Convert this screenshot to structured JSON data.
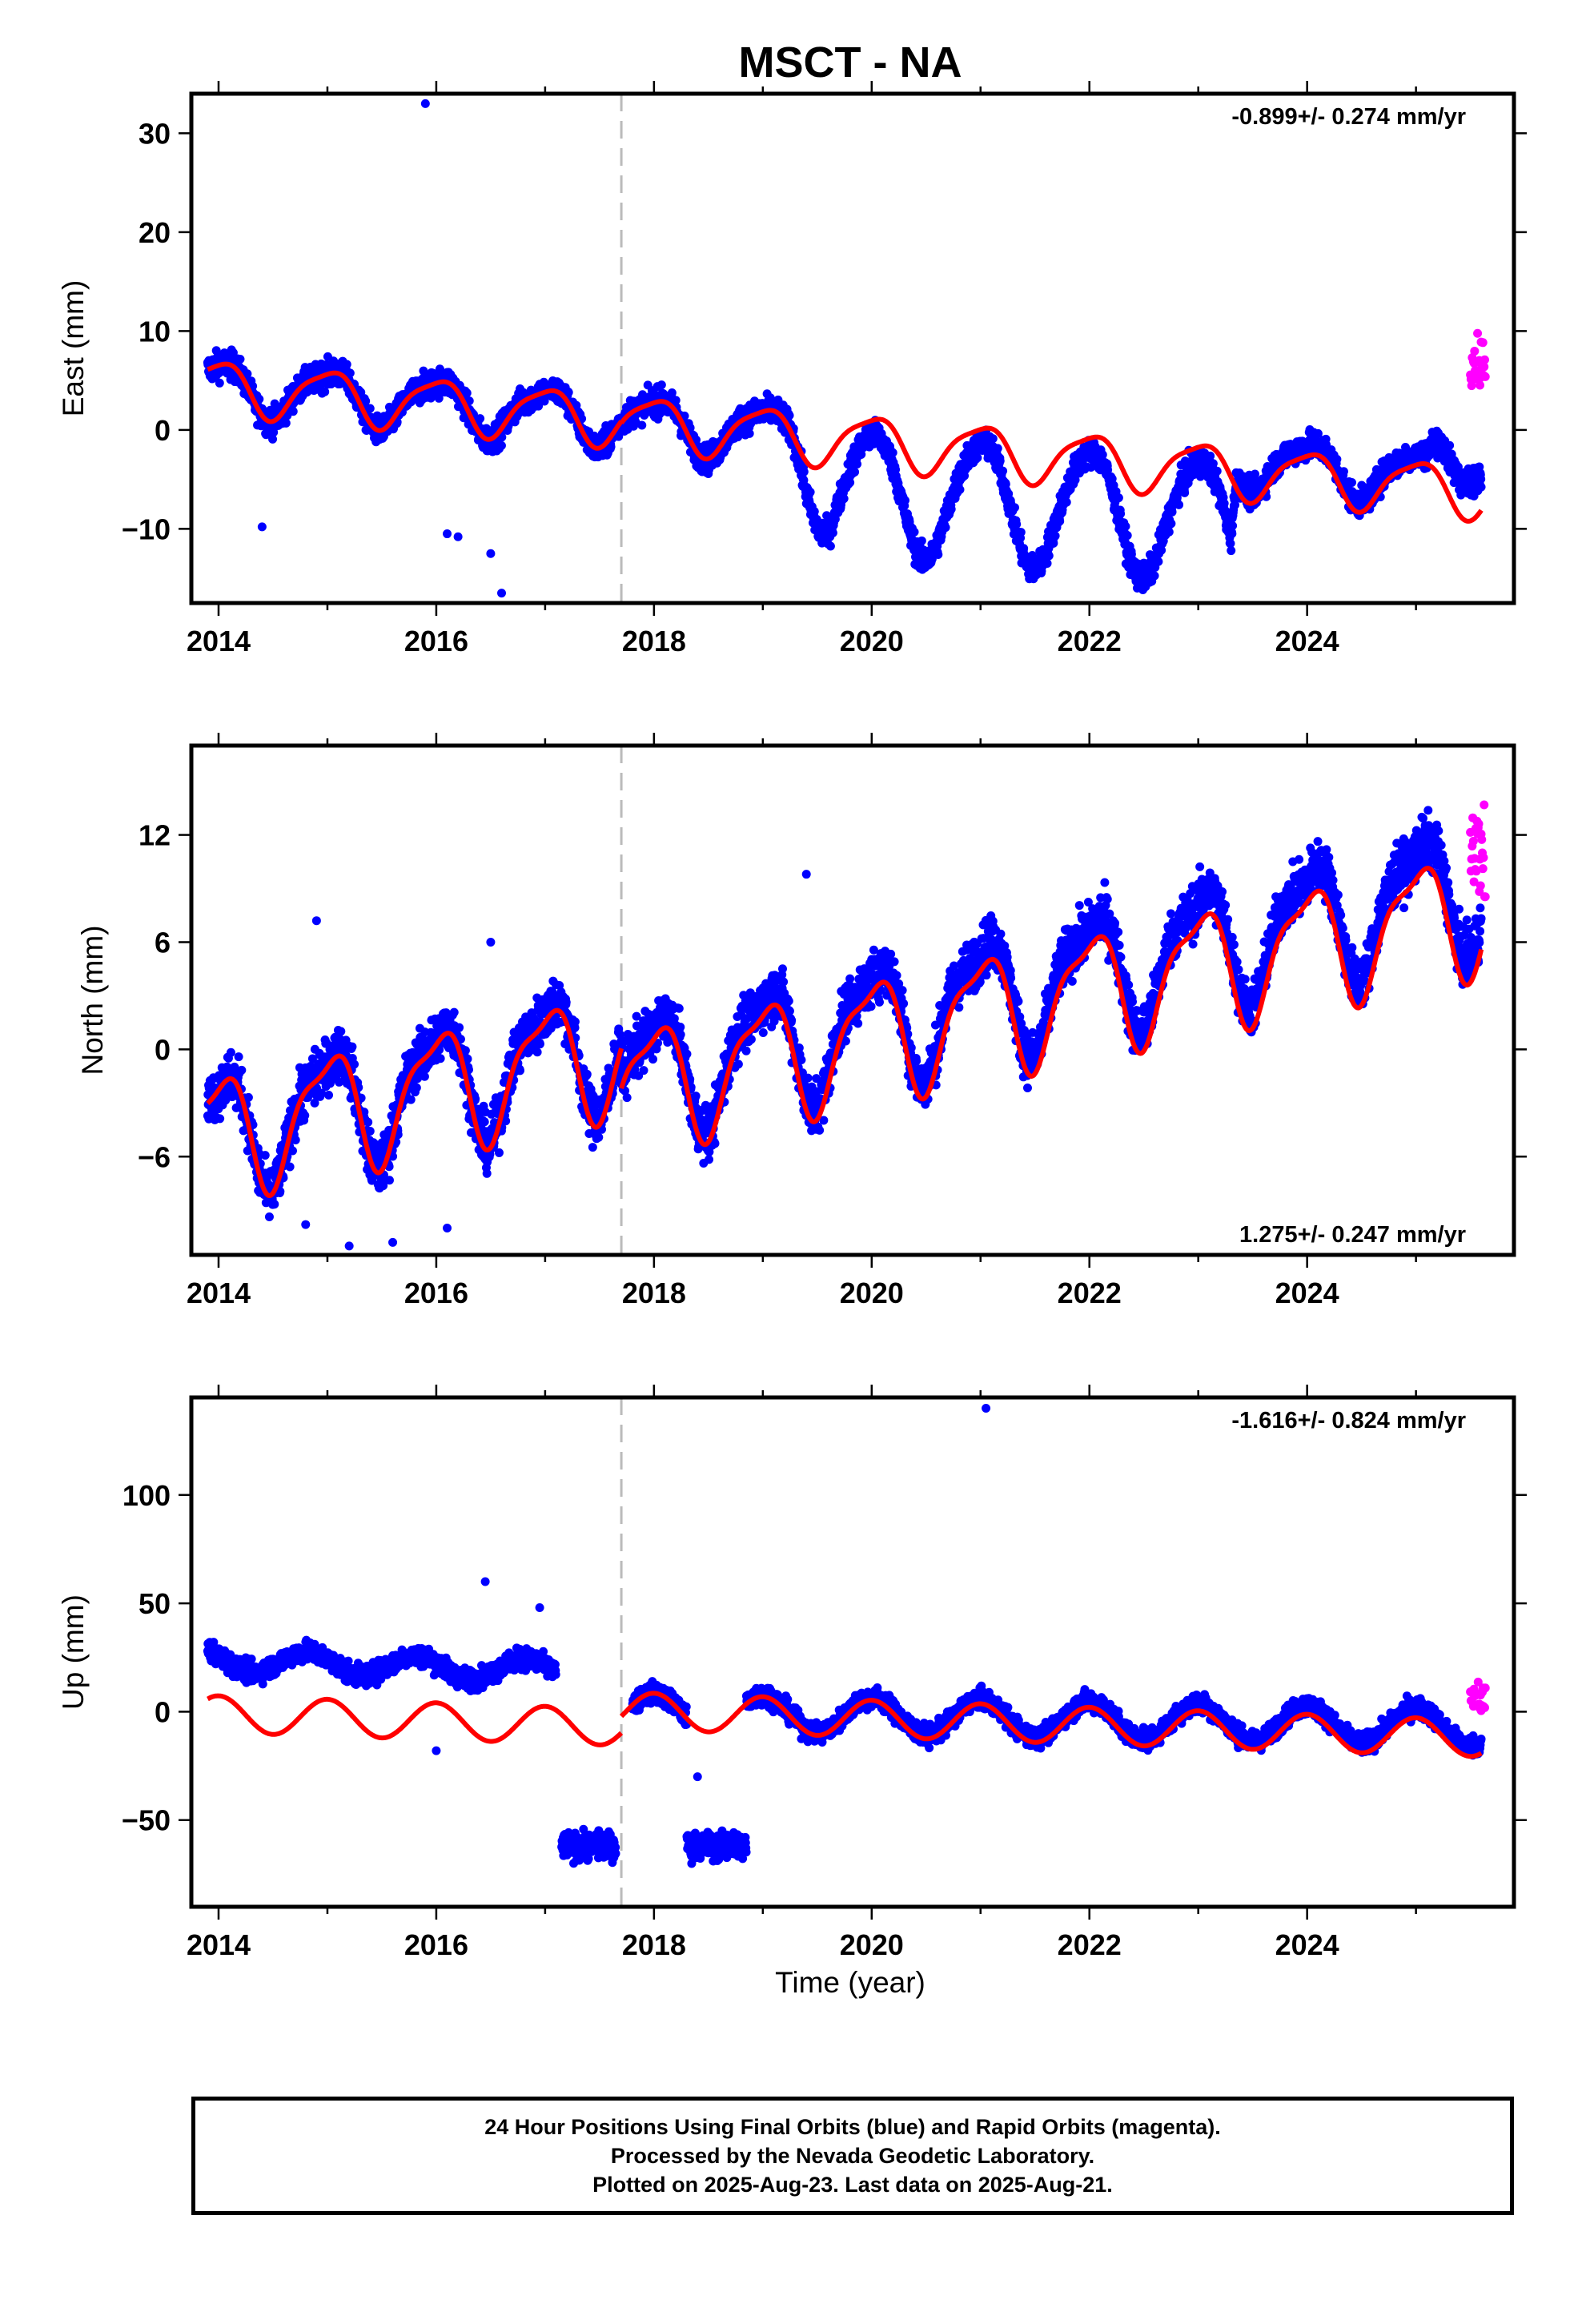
{
  "title": "MSCT - NA",
  "xlabel": "Time (year)",
  "caption": {
    "line1": "24 Hour Positions Using Final Orbits (blue) and Rapid Orbits (magenta).",
    "line2": "Processed by the Nevada Geodetic Laboratory.",
    "line3": "Plotted on 2025-Aug-23. Last data on 2025-Aug-21."
  },
  "colors": {
    "final_orbits": "#0000ff",
    "rapid_orbits": "#ff00ff",
    "model": "#ff0000",
    "event_line": "#bbbbbb"
  },
  "chart_data": [
    {
      "type": "scatter",
      "panel": "east",
      "ylabel": "East (mm)",
      "annotation": "-0.899+/- 0.274 mm/yr",
      "xlim": [
        2013.75,
        2025.9
      ],
      "ylim": [
        -17.5,
        34
      ],
      "xticks": [
        2014,
        2016,
        2018,
        2020,
        2022,
        2024
      ],
      "yticks": [
        -10,
        0,
        10,
        20,
        30
      ],
      "event_line_x": 2017.7,
      "model": {
        "trend_mm_per_yr": -0.899,
        "annual_amp": 2.6,
        "semiannual_amp": 0.6,
        "segments": [
          {
            "start": 2013.9,
            "end": 2017.7,
            "offset_at_start": 4.5
          },
          {
            "start": 2017.7,
            "end": 2025.6,
            "offset_at_start": 0.9
          }
        ]
      },
      "final_orbits": {
        "start": 2013.9,
        "end": 2025.6,
        "gaps": [
          [
            2017.0,
            2017.05
          ]
        ],
        "noise_mm": 1.8,
        "drift_anchors": [
          [
            2013.9,
            0
          ],
          [
            2019.3,
            0
          ],
          [
            2019.6,
            -5
          ],
          [
            2023.3,
            -5
          ],
          [
            2023.35,
            1
          ],
          [
            2025.1,
            1
          ],
          [
            2025.2,
            3.5
          ],
          [
            2025.6,
            4
          ]
        ],
        "extra_annual_anchors": [
          [
            2013.9,
            0
          ],
          [
            2019.2,
            0
          ],
          [
            2019.6,
            3.5
          ],
          [
            2023.3,
            3.5
          ],
          [
            2023.35,
            0
          ],
          [
            2025.6,
            0
          ]
        ],
        "outliers": [
          [
            2015.9,
            33
          ],
          [
            2016.6,
            -16.5
          ],
          [
            2016.5,
            -12.5
          ],
          [
            2016.1,
            -10.5
          ],
          [
            2016.2,
            -10.8
          ],
          [
            2014.4,
            -9.8
          ]
        ]
      },
      "rapid_orbits": {
        "start": 2025.5,
        "end": 2025.64,
        "center_mm": 7,
        "spread_mm": 3
      }
    },
    {
      "type": "scatter",
      "panel": "north",
      "ylabel": "North (mm)",
      "annotation": "1.275+/- 0.247 mm/yr",
      "xlim": [
        2013.75,
        2025.9
      ],
      "ylim": [
        -11.5,
        17
      ],
      "xticks": [
        2014,
        2016,
        2018,
        2020,
        2022,
        2024
      ],
      "yticks": [
        -6,
        0,
        6,
        12
      ],
      "event_line_x": 2017.7,
      "model": {
        "trend_mm_per_yr": 1.275,
        "annual_amp": 3.2,
        "semiannual_amp": 1.0,
        "segments": [
          {
            "start": 2013.9,
            "end": 2017.7,
            "offset_at_start": -4.8
          },
          {
            "start": 2017.7,
            "end": 2025.6,
            "offset_at_start": -2.2
          }
        ]
      },
      "final_orbits": {
        "start": 2013.9,
        "end": 2025.6,
        "gaps": [],
        "noise_mm": 1.9,
        "drift_anchors": [
          [
            2013.9,
            0
          ],
          [
            2025.6,
            1.5
          ]
        ],
        "extra_annual_anchors": [
          [
            2013.9,
            0
          ],
          [
            2025.6,
            0
          ]
        ],
        "outliers": [
          [
            2015.2,
            -11
          ],
          [
            2015.6,
            -10.8
          ],
          [
            2014.8,
            -9.8
          ],
          [
            2014.9,
            7.2
          ],
          [
            2016.5,
            6
          ],
          [
            2019.4,
            9.8
          ],
          [
            2016.1,
            -10
          ]
        ]
      },
      "rapid_orbits": {
        "start": 2025.5,
        "end": 2025.64,
        "center_mm": 11,
        "spread_mm": 3.5
      }
    },
    {
      "type": "scatter",
      "panel": "up",
      "ylabel": "Up (mm)",
      "annotation": "-1.616+/- 0.824 mm/yr",
      "xlim": [
        2013.75,
        2025.9
      ],
      "ylim": [
        -90,
        145
      ],
      "xticks": [
        2014,
        2016,
        2018,
        2020,
        2022,
        2024
      ],
      "yticks": [
        -50,
        0,
        50,
        100
      ],
      "event_line_x": 2017.7,
      "model": {
        "trend_mm_per_yr": -1.616,
        "annual_amp": 8.5,
        "semiannual_amp": 0.0,
        "segments": [
          {
            "start": 2013.9,
            "end": 2017.7,
            "offset_at_start": -1.0
          },
          {
            "start": 2017.7,
            "end": 2025.6,
            "offset_at_start": 0.5
          }
        ]
      },
      "final_orbits": {
        "start": 2013.9,
        "end": 2025.6,
        "gaps": [
          [
            2017.65,
            2017.8
          ],
          [
            2018.0,
            2018.02
          ]
        ],
        "noise_mm": 6,
        "drift_anchors": [
          [
            2013.9,
            15
          ],
          [
            2017.1,
            15
          ],
          [
            2017.15,
            -78
          ],
          [
            2017.65,
            -72
          ],
          [
            2017.8,
            0
          ],
          [
            2025.6,
            5
          ]
        ],
        "offsets_block": [
          {
            "start": 2017.15,
            "end": 2017.65,
            "center_mm": -62,
            "spread_mm": 8
          },
          {
            "start": 2018.3,
            "end": 2018.85,
            "center_mm": -62,
            "spread_mm": 8
          }
        ],
        "outliers": [
          [
            2021.05,
            140
          ],
          [
            2016.45,
            60
          ],
          [
            2016.95,
            48
          ],
          [
            2016.0,
            -18
          ],
          [
            2018.4,
            -30
          ]
        ]
      },
      "rapid_orbits": {
        "start": 2025.5,
        "end": 2025.64,
        "center_mm": 5,
        "spread_mm": 12
      }
    }
  ]
}
